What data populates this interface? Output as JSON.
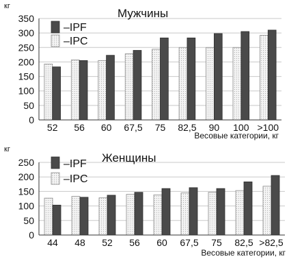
{
  "colors": {
    "IPF": "#4a4a4a",
    "IPC": "#f2f2f2",
    "grid": "#c8c8c8",
    "axis": "#333333"
  },
  "chart_data": [
    {
      "type": "bar",
      "title": "Мужчины",
      "unit_label": "кг",
      "xlabel": "Весовые категории, кг",
      "categories": [
        "52",
        "56",
        "60",
        "67,5",
        "75",
        "82,5",
        "90",
        "100",
        ">100"
      ],
      "ylim": [
        0,
        350
      ],
      "yticks": [
        0,
        50,
        100,
        150,
        200,
        250,
        300,
        350
      ],
      "grid": true,
      "series": [
        {
          "name": "IPC",
          "values": [
            193,
            207,
            205,
            228,
            244,
            250,
            250,
            250,
            292
          ]
        },
        {
          "name": "IPF",
          "values": [
            183,
            205,
            223,
            240,
            283,
            283,
            298,
            305,
            310
          ]
        }
      ],
      "legend": {
        "labels": [
          "–IPF",
          "–IPC"
        ],
        "position": "top-left"
      }
    },
    {
      "type": "bar",
      "title": "Женщины",
      "unit_label": "кг",
      "xlabel": "Весовые категории, кг",
      "categories": [
        "44",
        "48",
        "52",
        "56",
        "60",
        "67,5",
        "75",
        "82,5",
        ">82,5"
      ],
      "ylim": [
        0,
        250
      ],
      "yticks": [
        0,
        50,
        100,
        150,
        200,
        250
      ],
      "grid": true,
      "series": [
        {
          "name": "IPC",
          "values": [
            127,
            133,
            128,
            140,
            138,
            145,
            147,
            153,
            168
          ]
        },
        {
          "name": "IPF",
          "values": [
            103,
            130,
            137,
            147,
            160,
            163,
            160,
            183,
            205
          ]
        }
      ],
      "legend": {
        "labels": [
          "–IPF",
          "–IPC"
        ],
        "position": "top-left"
      }
    }
  ]
}
